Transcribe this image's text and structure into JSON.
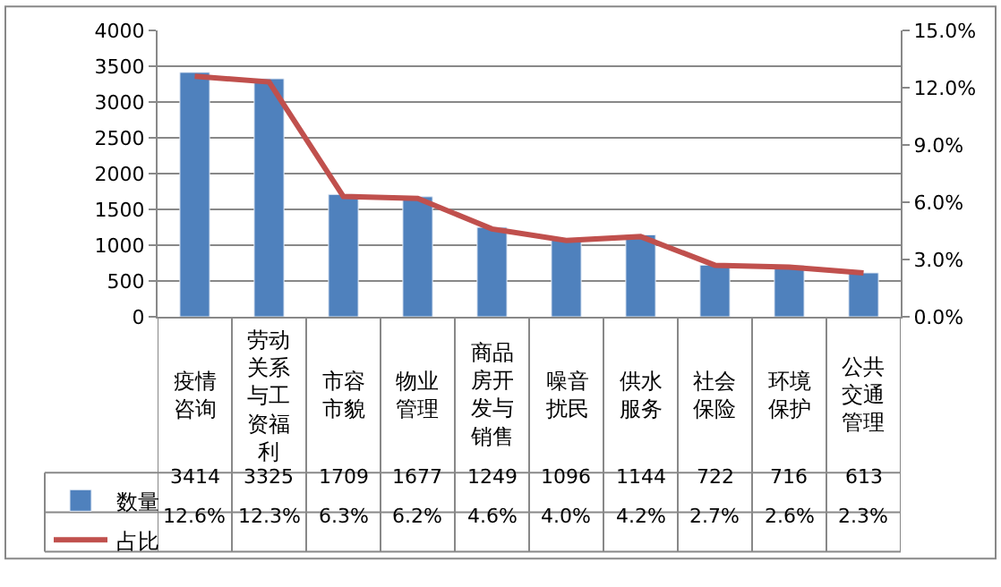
{
  "chart_data": {
    "type": "bar",
    "categories": [
      "疫情咨询",
      "劳动关系与工资福利",
      "市容市貌",
      "物业管理",
      "商品房开发与销售",
      "噪音扰民",
      "供水服务",
      "社会保险",
      "环境保护",
      "公共交通管理"
    ],
    "series": [
      {
        "name": "数量",
        "color": "#4f81bd",
        "values": [
          3414,
          3325,
          1709,
          1677,
          1249,
          1096,
          1144,
          722,
          716,
          613
        ],
        "value_labels": [
          "3414",
          "3325",
          "1709",
          "1677",
          "1249",
          "1096",
          "1144",
          "722",
          "716",
          "613"
        ]
      },
      {
        "name": "占比",
        "type": "line",
        "axis": "y2",
        "color": "#c0504d",
        "values": [
          12.6,
          12.3,
          6.3,
          6.2,
          4.6,
          4.0,
          4.2,
          2.7,
          2.6,
          2.3
        ],
        "value_labels": [
          "12.6%",
          "12.3%",
          "6.3%",
          "6.2%",
          "4.6%",
          "4.0%",
          "4.2%",
          "2.7%",
          "2.6%",
          "2.3%"
        ]
      }
    ],
    "ylim": [
      0,
      4000
    ],
    "yticks": [
      0,
      500,
      1000,
      1500,
      2000,
      2500,
      3000,
      3500,
      4000
    ],
    "y2lim": [
      0,
      15
    ],
    "y2ticks": [
      {
        "value": 0,
        "label": "0.0%"
      },
      {
        "value": 3,
        "label": "3.0%"
      },
      {
        "value": 6,
        "label": "6.0%"
      },
      {
        "value": 9,
        "label": "9.0%"
      },
      {
        "value": 12,
        "label": "12.0%"
      },
      {
        "value": 15,
        "label": "15.0%"
      }
    ],
    "grid": "y",
    "marker": "none",
    "line_style": "solid",
    "legend": "bottom left"
  }
}
